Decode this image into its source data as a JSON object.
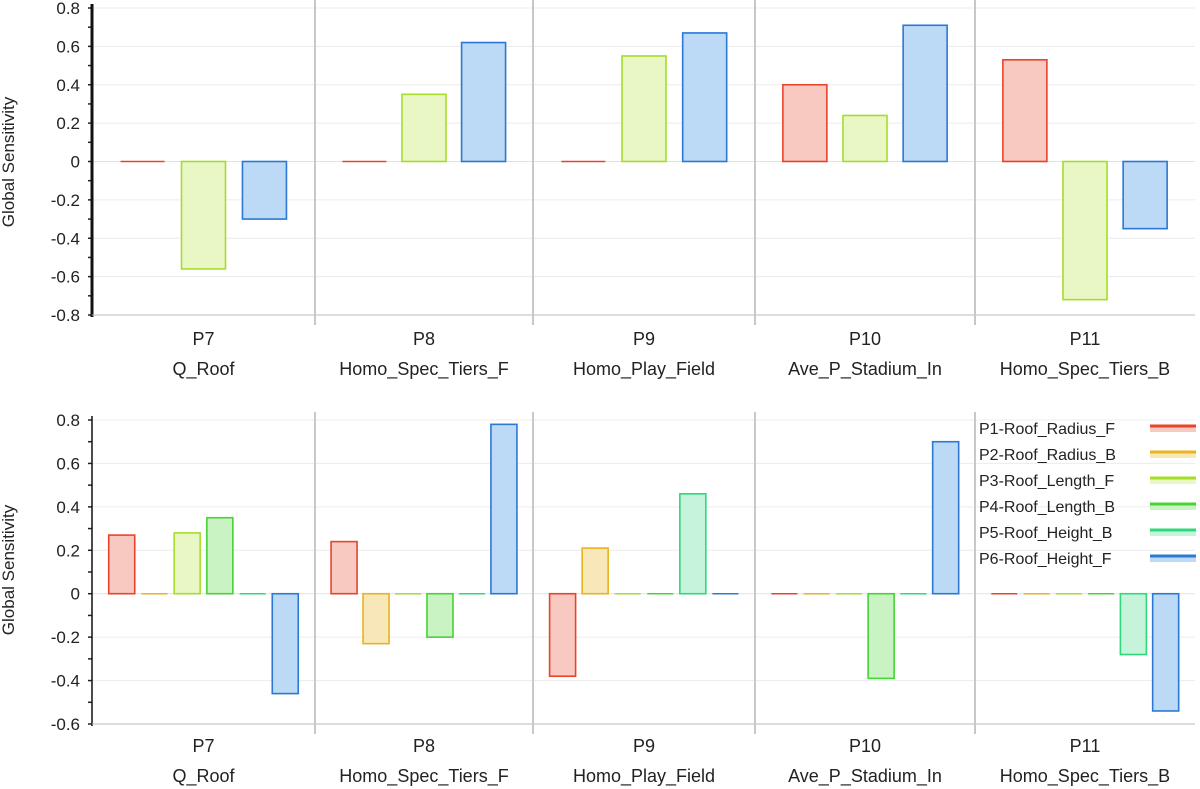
{
  "series_names": [
    "P1-Roof_Radius_F",
    "P2-Roof_Radius_B",
    "P3-Roof_Length_F",
    "P4-Roof_Length_B",
    "P5-Roof_Height_B",
    "P6-Roof_Height_F"
  ],
  "series_colors": [
    {
      "stroke": "#e8442c",
      "fill": "#f7c9c0"
    },
    {
      "stroke": "#e8b31e",
      "fill": "#f8e7b8"
    },
    {
      "stroke": "#a6dd2a",
      "fill": "#e8f7c4"
    },
    {
      "stroke": "#45d335",
      "fill": "#c9f3c2"
    },
    {
      "stroke": "#2fd87a",
      "fill": "#c6f4da"
    },
    {
      "stroke": "#2b78d6",
      "fill": "#bcd9f5"
    }
  ],
  "chart_data": [
    {
      "type": "bar",
      "ylabel": "Global Sensitivity",
      "ylim": [
        -0.8,
        0.8
      ],
      "yticks": [
        "0.8",
        "0.6",
        "0.4",
        "0.2",
        "0",
        "-0.2",
        "-0.4",
        "-0.6",
        "-0.8"
      ],
      "grid": true,
      "legend": "none",
      "groups": [
        {
          "code": "P7",
          "name": "Q_Roof"
        },
        {
          "code": "P8",
          "name": "Homo_Spec_Tiers_F"
        },
        {
          "code": "P9",
          "name": "Homo_Play_Field"
        },
        {
          "code": "P10",
          "name": "Ave_P_Stadium_In"
        },
        {
          "code": "P11",
          "name": "Homo_Spec_Tiers_B"
        }
      ],
      "series": [
        {
          "name": "P1-Roof_Radius_F",
          "values": [
            0,
            0,
            0,
            0.4,
            0.53
          ]
        },
        {
          "name": "P3-Roof_Length_F",
          "values": [
            -0.56,
            0.35,
            0.55,
            0.24,
            -0.72
          ]
        },
        {
          "name": "P6-Roof_Height_F",
          "values": [
            -0.3,
            0.62,
            0.67,
            0.71,
            -0.35
          ]
        }
      ]
    },
    {
      "type": "bar",
      "ylabel": "Global Sensitivity",
      "ylim": [
        -0.6,
        0.8
      ],
      "yticks": [
        "0.8",
        "0.6",
        "0.4",
        "0.2",
        "0",
        "-0.2",
        "-0.4",
        "-0.6"
      ],
      "grid": true,
      "legend": "top-right",
      "groups": [
        {
          "code": "P7",
          "name": "Q_Roof"
        },
        {
          "code": "P8",
          "name": "Homo_Spec_Tiers_F"
        },
        {
          "code": "P9",
          "name": "Homo_Play_Field"
        },
        {
          "code": "P10",
          "name": "Ave_P_Stadium_In"
        },
        {
          "code": "P11",
          "name": "Homo_Spec_Tiers_B"
        }
      ],
      "series": [
        {
          "name": "P1-Roof_Radius_F",
          "values": [
            0.27,
            0.24,
            -0.38,
            0,
            0
          ]
        },
        {
          "name": "P2-Roof_Radius_B",
          "values": [
            0,
            -0.23,
            0.21,
            0,
            0
          ]
        },
        {
          "name": "P3-Roof_Length_F",
          "values": [
            0.28,
            0,
            0,
            0,
            0
          ]
        },
        {
          "name": "P4-Roof_Length_B",
          "values": [
            0.35,
            -0.2,
            0,
            -0.39,
            0
          ]
        },
        {
          "name": "P5-Roof_Height_B",
          "values": [
            0,
            0,
            0.46,
            0,
            -0.28
          ]
        },
        {
          "name": "P6-Roof_Height_F",
          "values": [
            -0.46,
            0.78,
            0,
            0.7,
            -0.54
          ]
        }
      ]
    }
  ]
}
